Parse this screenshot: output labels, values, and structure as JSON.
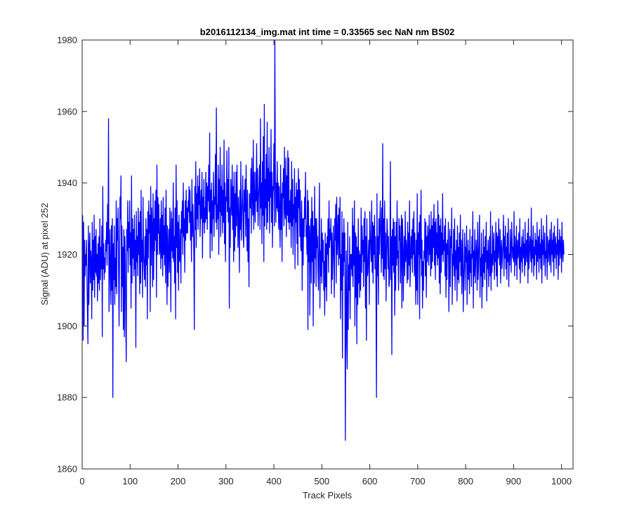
{
  "chart_data": {
    "type": "line",
    "title": "b2016112134_img.mat int time = 0.33565 sec  NaN nm BS02",
    "xlabel": "Track Pixels",
    "ylabel": "Signal (ADU) at pixel 252",
    "xlim": [
      0,
      1024
    ],
    "ylim": [
      1860,
      1980
    ],
    "xticks": [
      0,
      100,
      200,
      300,
      400,
      500,
      600,
      700,
      800,
      900,
      1000
    ],
    "yticks": [
      1860,
      1880,
      1900,
      1920,
      1940,
      1960,
      1980
    ],
    "grid": false,
    "legend": "none",
    "series": [
      {
        "color": "#0000ff",
        "x_start": 1,
        "x_step": 1,
        "values": [
          1931,
          1896,
          1929,
          1900,
          1924,
          1914,
          1920,
          1917,
          1924,
          1913,
          1905,
          1895,
          1928,
          1906,
          1922,
          1926,
          1912,
          1921,
          1918,
          1902,
          1929,
          1910,
          1924,
          1913,
          1931,
          1908,
          1925,
          1915,
          1927,
          1914,
          1920,
          1907,
          1923,
          1912,
          1925,
          1910,
          1930,
          1913,
          1922,
          1916,
          1928,
          1897,
          1939,
          1916,
          1923,
          1913,
          1919,
          1915,
          1924,
          1921,
          1929,
          1917,
          1934,
          1923,
          1958,
          1904,
          1912,
          1927,
          1916,
          1906,
          1928,
          1910,
          1930,
          1880,
          1923,
          1913,
          1928,
          1906,
          1919,
          1911,
          1935,
          1909,
          1930,
          1924,
          1933,
          1915,
          1900,
          1921,
          1936,
          1930,
          1942,
          1904,
          1928,
          1911,
          1922,
          1899,
          1927,
          1897,
          1925,
          1918,
          1901,
          1890,
          1927,
          1921,
          1935,
          1915,
          1929,
          1922,
          1935,
          1917,
          1926,
          1905,
          1942,
          1912,
          1930,
          1919,
          1927,
          1914,
          1931,
          1916,
          1924,
          1894,
          1932,
          1918,
          1925,
          1914,
          1933,
          1920,
          1929,
          1909,
          1932,
          1912,
          1938,
          1918,
          1924,
          1908,
          1936,
          1920,
          1917,
          1913,
          1925,
          1911,
          1930,
          1917,
          1927,
          1902,
          1932,
          1919,
          1935,
          1926,
          1931,
          1904,
          1939,
          1917,
          1933,
          1927,
          1911,
          1937,
          1913,
          1930,
          1921,
          1935,
          1924,
          1938,
          1908,
          1945,
          1920,
          1936,
          1926,
          1934,
          1920,
          1922,
          1930,
          1916,
          1935,
          1919,
          1931,
          1914,
          1936,
          1920,
          1928,
          1917,
          1933,
          1912,
          1938,
          1925,
          1906,
          1928,
          1911,
          1921,
          1927,
          1915,
          1933,
          1925,
          1904,
          1932,
          1921,
          1930,
          1919,
          1940,
          1918,
          1925,
          1912,
          1933,
          1902,
          1945,
          1922,
          1935,
          1915,
          1929,
          1910,
          1931,
          1919,
          1918,
          1927,
          1912,
          1932,
          1926,
          1935,
          1920,
          1940,
          1925,
          1930,
          1915,
          1935,
          1924,
          1938,
          1926,
          1933,
          1926,
          1935,
          1932,
          1939,
          1929,
          1938,
          1924,
          1932,
          1918,
          1941,
          1925,
          1934,
          1928,
          1920,
          1899,
          1939,
          1927,
          1946,
          1922,
          1937,
          1930,
          1942,
          1927,
          1939,
          1934,
          1944,
          1925,
          1932,
          1938,
          1930,
          1943,
          1919,
          1936,
          1929,
          1941,
          1926,
          1933,
          1929,
          1943,
          1930,
          1940,
          1927,
          1939,
          1935,
          1945,
          1932,
          1954,
          1919,
          1938,
          1926,
          1940,
          1921,
          1935,
          1930,
          1943,
          1925,
          1936,
          1934,
          1948,
          1929,
          1961,
          1927,
          1934,
          1930,
          1945,
          1920,
          1941,
          1932,
          1950,
          1925,
          1939,
          1931,
          1945,
          1926,
          1938,
          1929,
          1952,
          1923,
          1940,
          1918,
          1936,
          1935,
          1949,
          1932,
          1941,
          1929,
          1950,
          1905,
          1933,
          1922,
          1941,
          1936,
          1931,
          1945,
          1927,
          1939,
          1918,
          1943,
          1921,
          1937,
          1925,
          1943,
          1928,
          1945,
          1933,
          1922,
          1936,
          1930,
          1915,
          1938,
          1927,
          1946,
          1924,
          1931,
          1935,
          1942,
          1925,
          1922,
          1938,
          1932,
          1941,
          1925,
          1945,
          1934,
          1921,
          1938,
          1918,
          1930,
          1911,
          1937,
          1934,
          1933,
          1944,
          1926,
          1947,
          1938,
          1931,
          1952,
          1927,
          1943,
          1934,
          1929,
          1943,
          1935,
          1951,
          1932,
          1944,
          1928,
          1936,
          1939,
          1945,
          1927,
          1958,
          1933,
          1940,
          1923,
          1946,
          1931,
          1953,
          1918,
          1962,
          1928,
          1941,
          1933,
          1948,
          1927,
          1957,
          1929,
          1944,
          1935,
          1950,
          1926,
          1943,
          1936,
          1955,
          1929,
          1943,
          1922,
          1939,
          1938,
          1951,
          1928,
          1980,
          1945,
          1929,
          1940,
          1933,
          1946,
          1932,
          1940,
          1927,
          1939,
          1930,
          1922,
          1945,
          1927,
          1937,
          1918,
          1940,
          1936,
          1944,
          1928,
          1950,
          1932,
          1930,
          1947,
          1925,
          1942,
          1931,
          1949,
          1929,
          1947,
          1927,
          1935,
          1929,
          1938,
          1922,
          1946,
          1928,
          1941,
          1920,
          1934,
          1930,
          1944,
          1916,
          1936,
          1929,
          1940,
          1923,
          1938,
          1917,
          1944,
          1933,
          1941,
          1925,
          1938,
          1922,
          1921,
          1935,
          1910,
          1930,
          1917,
          1930,
          1925,
          1936,
          1930,
          1943,
          1925,
          1928,
          1920,
          1938,
          1899,
          1935,
          1918,
          1928,
          1903,
          1925,
          1930,
          1912,
          1936,
          1918,
          1932,
          1900,
          1928,
          1912,
          1939,
          1919,
          1930,
          1911,
          1930,
          1922,
          1925,
          1915,
          1910,
          1925,
          1940,
          1905,
          1921,
          1914,
          1930,
          1912,
          1926,
          1918,
          1924,
          1910,
          1918,
          1903,
          1926,
          1911,
          1923,
          1907,
          1925,
          1920,
          1930,
          1915,
          1935,
          1922,
          1927,
          1924,
          1930,
          1909,
          1926,
          1913,
          1921,
          1928,
          1919,
          1908,
          1930,
          1924,
          1934,
          1912,
          1936,
          1920,
          1925,
          1931,
          1917,
          1933,
          1919,
          1936,
          1902,
          1920,
          1910,
          1932,
          1891,
          1926,
          1914,
          1930,
          1918,
          1926,
          1868,
          1905,
          1921,
          1895,
          1888,
          1929,
          1899,
          1917,
          1910,
          1925,
          1902,
          1920,
          1916,
          1920,
          1914,
          1933,
          1911,
          1928,
          1917,
          1935,
          1900,
          1926,
          1908,
          1925,
          1895,
          1922,
          1906,
          1930,
          1912,
          1921,
          1908,
          1920,
          1910,
          1933,
          1915,
          1928,
          1920,
          1924,
          1911,
          1930,
          1918,
          1932,
          1905,
          1925,
          1896,
          1930,
          1914,
          1915,
          1920,
          1924,
          1906,
          1932,
          1926,
          1921,
          1918,
          1935,
          1915,
          1929,
          1912,
          1928,
          1920,
          1931,
          1916,
          1925,
          1910,
          1880,
          1937,
          1914,
          1925,
          1906,
          1930,
          1920,
          1929,
          1935,
          1925,
          1915,
          1933,
          1919,
          1951,
          1914,
          1930,
          1913,
          1935,
          1916,
          1926,
          1907,
          1920,
          1930,
          1926,
          1916,
          1925,
          1911,
          1912,
          1919,
          1946,
          1913,
          1925,
          1892,
          1927,
          1917,
          1930,
          1915,
          1929,
          1903,
          1925,
          1910,
          1929,
          1917,
          1935,
          1919,
          1921,
          1910,
          1930,
          1924,
          1928,
          1912,
          1920,
          1931,
          1905,
          1930,
          1925,
          1907,
          1920,
          1925,
          1914,
          1932,
          1918,
          1924,
          1921,
          1912,
          1929,
          1913,
          1926,
          1917,
          1935,
          1911,
          1917,
          1925,
          1919,
          1927,
          1915,
          1930,
          1920,
          1932,
          1914,
          1926,
          1917,
          1906,
          1924,
          1910,
          1937,
          1906,
          1926,
          1920,
          1929,
          1902,
          1931,
          1919,
          1938,
          1914,
          1924,
          1905,
          1918,
          1910,
          1921,
          1919,
          1930,
          1914,
          1929,
          1908,
          1925,
          1918,
          1928,
          1924,
          1917,
          1931,
          1920,
          1927,
          1914,
          1932,
          1916,
          1928,
          1918,
          1930,
          1922,
          1934,
          1917,
          1929,
          1913,
          1930,
          1920,
          1926,
          1917,
          1935,
          1919,
          1931,
          1912,
          1928,
          1909,
          1930,
          1915,
          1926,
          1920,
          1937,
          1918,
          1924,
          1921,
          1928,
          1914,
          1930,
          1908,
          1923,
          1913,
          1924,
          1920,
          1929,
          1904,
          1916,
          1927,
          1911,
          1925,
          1922,
          1933,
          1906,
          1920,
          1917,
          1927,
          1914,
          1930,
          1910,
          1921,
          1916,
          1924,
          1907,
          1928,
          1913,
          1922,
          1912,
          1926,
          1918,
          1931,
          1914,
          1924,
          1909,
          1920,
          1927,
          1904,
          1913,
          1918,
          1926,
          1910,
          1922,
          1918,
          1928,
          1906,
          1917,
          1924,
          1913,
          1921,
          1909,
          1927,
          1915,
          1920,
          1911,
          1925,
          1919,
          1932,
          1905,
          1921,
          1914,
          1927,
          1912,
          1918,
          1924,
          1920,
          1910,
          1929,
          1913,
          1917,
          1925,
          1931,
          1908,
          1919,
          1914,
          1926,
          1905,
          1920,
          1911,
          1927,
          1915,
          1922,
          1913,
          1925,
          1918,
          1929,
          1907,
          1921,
          1916,
          1924,
          1911,
          1919,
          1925,
          1914,
          1932,
          1910,
          1920,
          1915,
          1928,
          1917,
          1922,
          1926,
          1913,
          1921,
          1918,
          1929,
          1914,
          1926,
          1911,
          1925,
          1919,
          1930,
          1922,
          1917,
          1927,
          1912,
          1921,
          1924,
          1916,
          1920,
          1923,
          1931,
          1914,
          1925,
          1919,
          1928,
          1916,
          1922,
          1913,
          1926,
          1918,
          1930,
          1911,
          1920,
          1917,
          1927,
          1921,
          1915,
          1929,
          1924,
          1919,
          1922,
          1918,
          1932,
          1914,
          1925,
          1920,
          1917,
          1928,
          1913,
          1924,
          1919,
          1921,
          1926,
          1916,
          1930,
          1912,
          1922,
          1918,
          1925,
          1915,
          1921,
          1927,
          1919,
          1923,
          1914,
          1929,
          1917,
          1921,
          1924,
          1918,
          1926,
          1912,
          1930,
          1916,
          1920,
          1925,
          1922,
          1918,
          1933,
          1915,
          1924,
          1919,
          1928,
          1914,
          1922,
          1917,
          1926,
          1920,
          1924,
          1913,
          1929,
          1918,
          1921,
          1925,
          1915,
          1927,
          1919,
          1923,
          1916,
          1930,
          1912,
          1924,
          1920,
          1928,
          1917,
          1922,
          1926,
          1914,
          1921,
          1919,
          1931,
          1913,
          1925,
          1918,
          1922,
          1924,
          1917,
          1927,
          1921,
          1915,
          1929,
          1920,
          1924,
          1918,
          1926,
          1914,
          1928,
          1919,
          1922,
          1925,
          1916,
          1923,
          1920,
          1930,
          1913,
          1924,
          1917,
          1927,
          1922,
          1919,
          1925,
          1915,
          1929,
          1921,
          1918,
          1924,
          1920
        ]
      }
    ]
  }
}
